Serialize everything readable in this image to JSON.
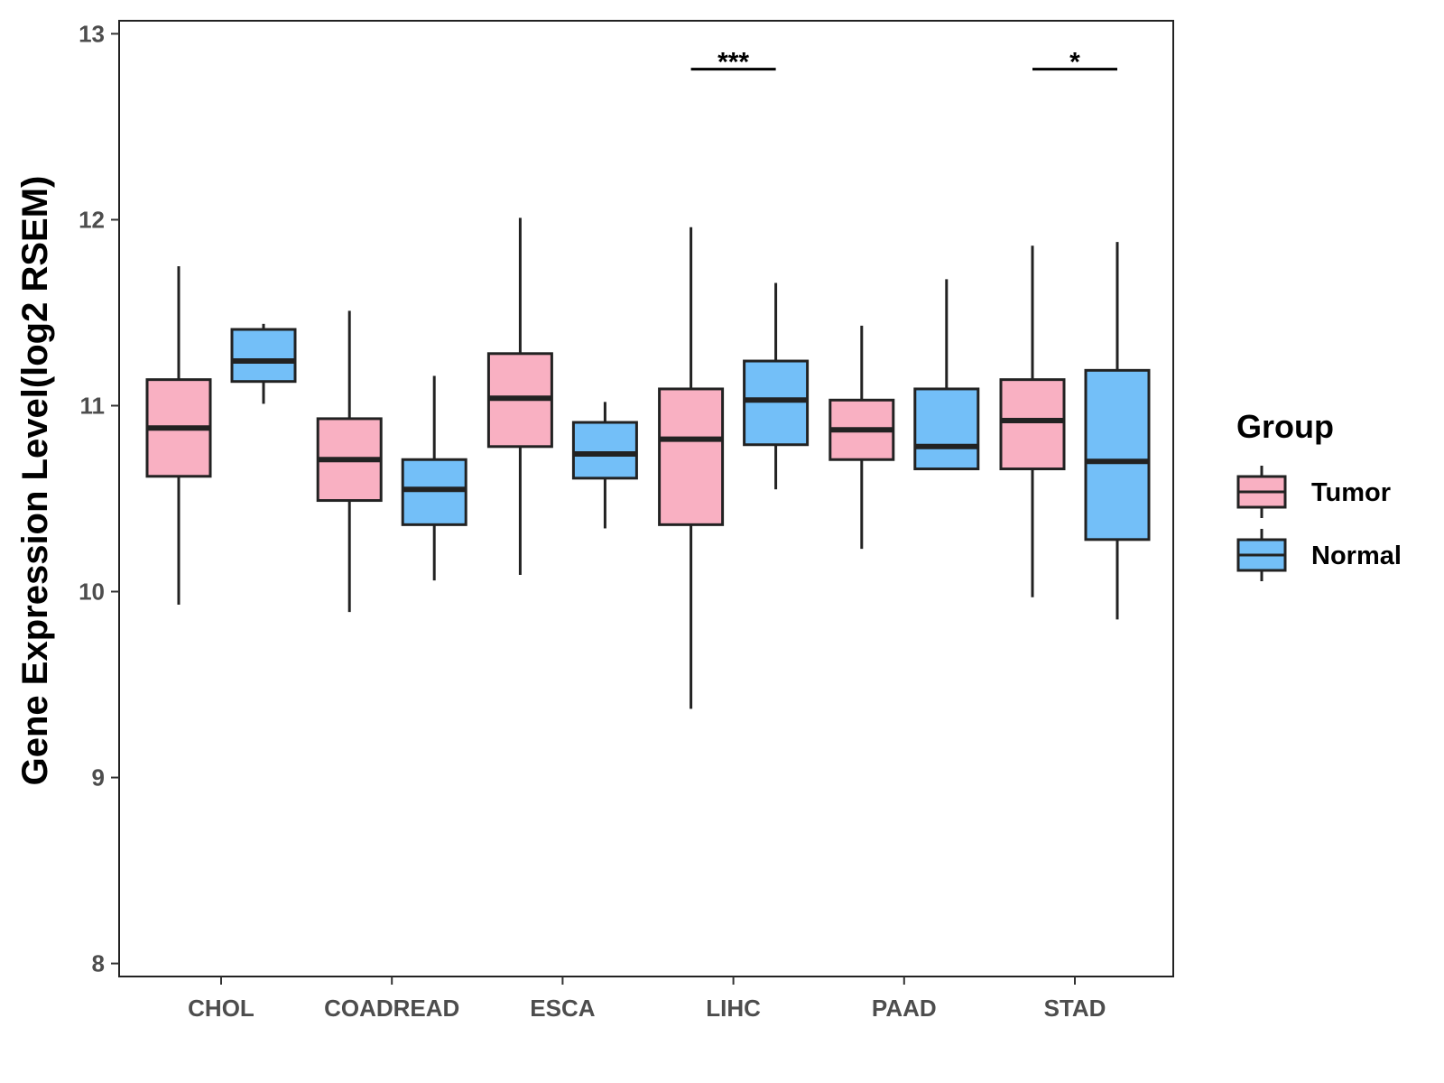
{
  "chart_data": {
    "type": "boxplot",
    "title": "",
    "xlabel": "",
    "ylabel": "Gene Expression Level(log2 RSEM)",
    "ylim": [
      7.93,
      13.07
    ],
    "y_ticks": [
      8,
      9,
      10,
      11,
      12,
      13
    ],
    "categories": [
      "CHOL",
      "COADREAD",
      "ESCA",
      "LIHC",
      "PAAD",
      "STAD"
    ],
    "legend": {
      "title": "Group",
      "position": "right",
      "entries": [
        "Tumor",
        "Normal"
      ]
    },
    "colors": {
      "Tumor": "#f9b0c2",
      "Normal": "#73bff8",
      "stroke": "#222222"
    },
    "series": [
      {
        "name": "Tumor",
        "boxes": [
          {
            "category": "CHOL",
            "min": 9.93,
            "q1": 10.62,
            "median": 10.88,
            "q3": 11.14,
            "max": 11.75
          },
          {
            "category": "COADREAD",
            "min": 9.89,
            "q1": 10.49,
            "median": 10.71,
            "q3": 10.93,
            "max": 11.51
          },
          {
            "category": "ESCA",
            "min": 10.09,
            "q1": 10.78,
            "median": 11.04,
            "q3": 11.28,
            "max": 12.01
          },
          {
            "category": "LIHC",
            "min": 9.37,
            "q1": 10.36,
            "median": 10.82,
            "q3": 11.09,
            "max": 11.96
          },
          {
            "category": "PAAD",
            "min": 10.23,
            "q1": 10.71,
            "median": 10.87,
            "q3": 11.03,
            "max": 11.43
          },
          {
            "category": "STAD",
            "min": 9.97,
            "q1": 10.66,
            "median": 10.92,
            "q3": 11.14,
            "max": 11.86
          }
        ]
      },
      {
        "name": "Normal",
        "boxes": [
          {
            "category": "CHOL",
            "min": 11.01,
            "q1": 11.13,
            "median": 11.24,
            "q3": 11.41,
            "max": 11.44
          },
          {
            "category": "COADREAD",
            "min": 10.06,
            "q1": 10.36,
            "median": 10.55,
            "q3": 10.71,
            "max": 11.16
          },
          {
            "category": "ESCA",
            "min": 10.34,
            "q1": 10.61,
            "median": 10.74,
            "q3": 10.91,
            "max": 11.02
          },
          {
            "category": "LIHC",
            "min": 10.55,
            "q1": 10.79,
            "median": 11.03,
            "q3": 11.24,
            "max": 11.66
          },
          {
            "category": "PAAD",
            "min": 10.66,
            "q1": 10.66,
            "median": 10.78,
            "q3": 11.09,
            "max": 11.68
          },
          {
            "category": "STAD",
            "min": 9.85,
            "q1": 10.28,
            "median": 10.7,
            "q3": 11.19,
            "max": 11.88
          }
        ]
      }
    ],
    "annotations": [
      {
        "category": "LIHC",
        "label": "***",
        "y": 12.81
      },
      {
        "category": "STAD",
        "label": "*",
        "y": 12.81
      }
    ]
  }
}
